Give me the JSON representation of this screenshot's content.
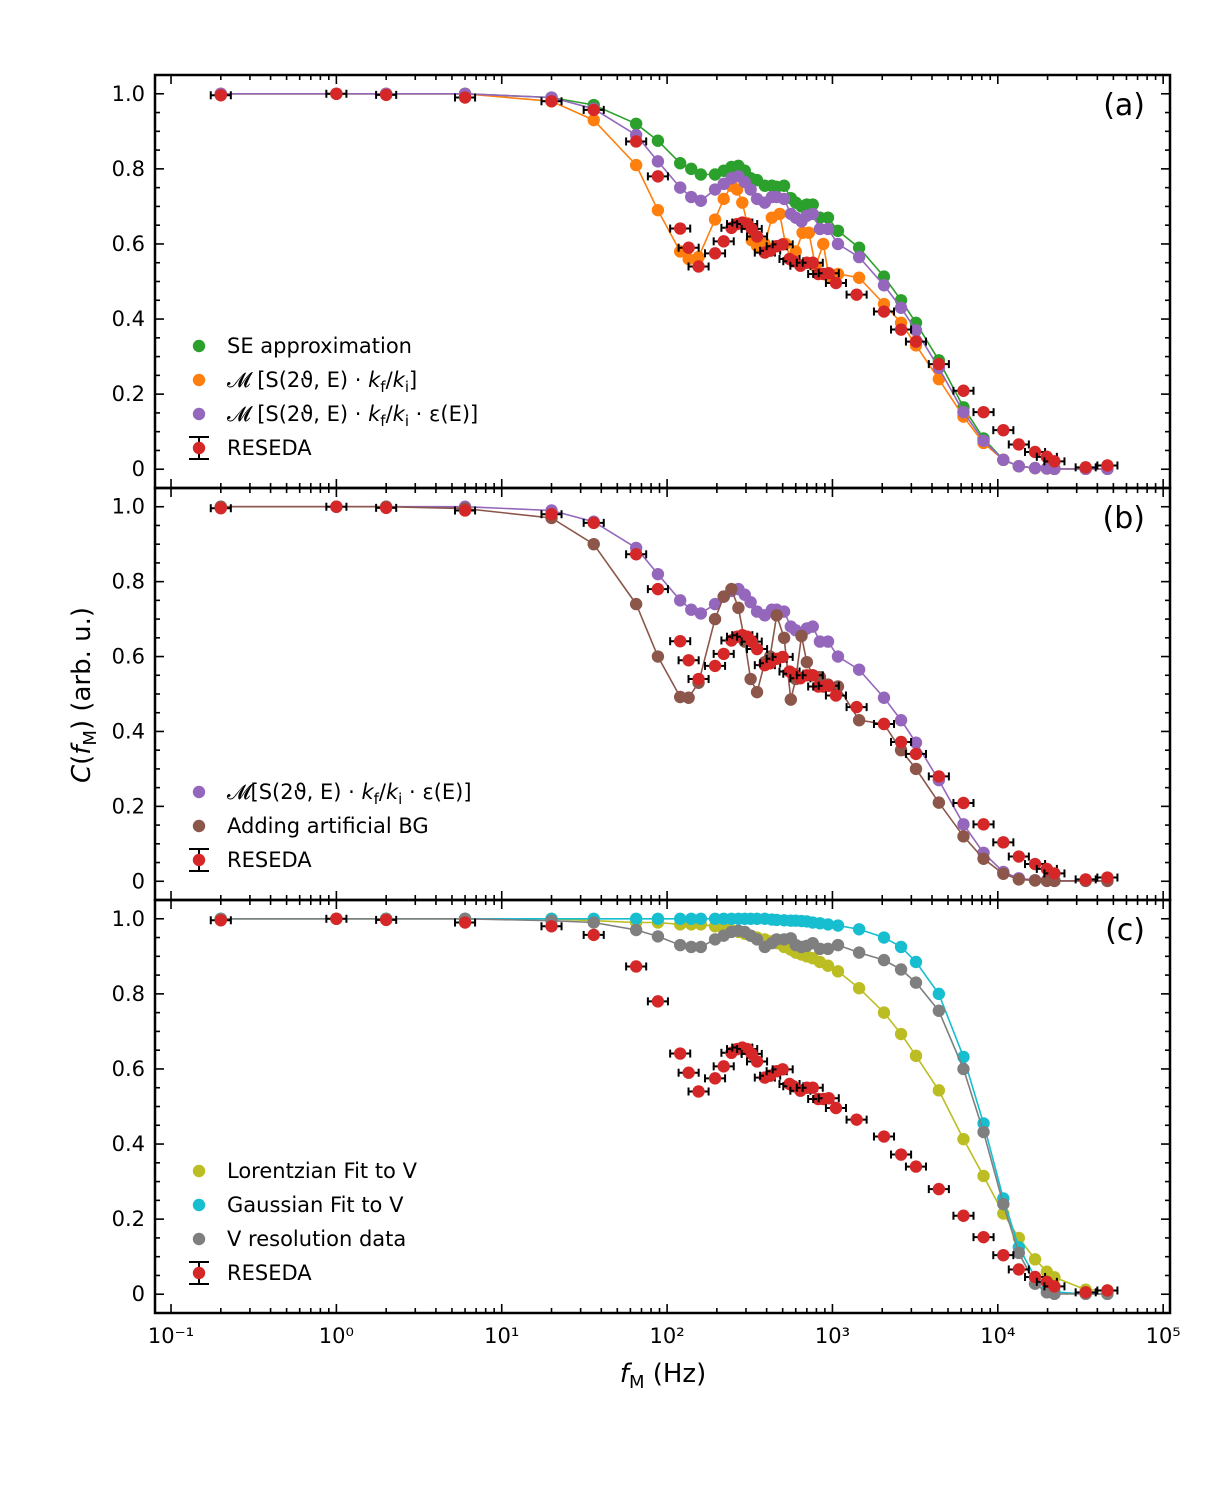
{
  "chart_data": {
    "type": "scatter",
    "ylabel": "C(fM) (arb. u.)",
    "xlabel": "fM (Hz)",
    "xscale": "log",
    "xlim": [
      0.08,
      110000
    ],
    "ylim": [
      -0.05,
      1.05
    ],
    "x_ticks": [
      "10⁻¹",
      "10⁰",
      "10¹",
      "10²",
      "10³",
      "10⁴",
      "10⁵"
    ],
    "y_ticks": [
      "0",
      "0.2",
      "0.4",
      "0.6",
      "0.8",
      "1.0"
    ],
    "colors": {
      "se": "#2ca02c",
      "orange": "#ff7f0e",
      "purple": "#9467bd",
      "reseda": "#d62728",
      "brown": "#8c564b",
      "olive": "#bcbd22",
      "cyan": "#17becf",
      "gray": "#7f7f7f",
      "axis": "#000000"
    },
    "reseda": {
      "x": [
        0.2,
        1,
        2,
        6,
        20,
        36,
        65,
        88,
        120,
        135,
        155,
        195,
        220,
        245,
        265,
        285,
        305,
        325,
        350,
        390,
        420,
        460,
        500,
        550,
        580,
        640,
        700,
        760,
        820,
        880,
        950,
        1050,
        1400,
        2050,
        2600,
        3200,
        4400,
        6200,
        8200,
        10800,
        13400,
        16800,
        19800,
        22000,
        34000,
        46000
      ],
      "y": [
        0.996,
        1.0,
        0.997,
        0.99,
        0.98,
        0.957,
        0.873,
        0.78,
        0.641,
        0.59,
        0.54,
        0.575,
        0.607,
        0.643,
        0.653,
        0.657,
        0.653,
        0.64,
        0.62,
        0.577,
        0.582,
        0.594,
        0.599,
        0.56,
        0.554,
        0.542,
        0.55,
        0.55,
        0.52,
        0.52,
        0.522,
        0.496,
        0.465,
        0.42,
        0.372,
        0.34,
        0.28,
        0.209,
        0.152,
        0.104,
        0.066,
        0.046,
        0.033,
        0.021,
        0.005,
        0.01
      ]
    },
    "panels": [
      {
        "label": "(a)",
        "legend": [
          "SE approximation",
          "𝓜 [S(2ϑ, E) · kf/ki]",
          "𝓜 [S(2ϑ, E) · kf/ki · ε(E)]",
          "RESEDA"
        ],
        "series": [
          {
            "name": "SE approximation",
            "color": "se",
            "x": [
              0.2,
              1,
              2,
              6,
              20,
              36,
              65,
              88,
              120,
              140,
              160,
              195,
              220,
              245,
              270,
              295,
              320,
              350,
              390,
              430,
              460,
              510,
              560,
              600,
              650,
              700,
              760,
              840,
              940,
              1080,
              1450,
              2050,
              2600,
              3200,
              4400,
              6200,
              8200,
              10800,
              13400,
              16800,
              19800,
              22000,
              34000,
              46000
            ],
            "y": [
              1.0,
              1.0,
              1.0,
              1.0,
              0.99,
              0.97,
              0.92,
              0.875,
              0.815,
              0.8,
              0.785,
              0.785,
              0.795,
              0.805,
              0.808,
              0.795,
              0.775,
              0.77,
              0.755,
              0.755,
              0.752,
              0.755,
              0.722,
              0.71,
              0.7,
              0.705,
              0.705,
              0.67,
              0.67,
              0.635,
              0.59,
              0.513,
              0.45,
              0.39,
              0.29,
              0.165,
              0.082,
              0.025,
              0.008,
              0.003,
              0.002,
              0.001,
              0.001,
              0.001
            ]
          },
          {
            "name": "M [S kf/ki]",
            "color": "orange",
            "x": [
              0.2,
              1,
              2,
              6,
              20,
              36,
              65,
              88,
              120,
              135,
              155,
              195,
              220,
              245,
              265,
              285,
              305,
              325,
              350,
              390,
              430,
              480,
              520,
              560,
              600,
              660,
              720,
              790,
              880,
              950,
              1080,
              1450,
              2050,
              2600,
              3200,
              4400,
              6200,
              8200,
              10800,
              13400,
              16800,
              19800,
              22000,
              34000,
              46000
            ],
            "y": [
              1.0,
              1.0,
              1.0,
              1.0,
              0.98,
              0.93,
              0.81,
              0.69,
              0.58,
              0.56,
              0.565,
              0.665,
              0.72,
              0.755,
              0.745,
              0.71,
              0.655,
              0.61,
              0.595,
              0.6,
              0.67,
              0.68,
              0.6,
              0.56,
              0.58,
              0.63,
              0.63,
              0.54,
              0.6,
              0.515,
              0.52,
              0.51,
              0.44,
              0.39,
              0.33,
              0.24,
              0.14,
              0.07,
              0.025,
              0.008,
              0.003,
              0.002,
              0.001,
              0.001,
              0.001
            ]
          },
          {
            "name": "M [S kf/ki eps]",
            "color": "purple",
            "x": [
              0.2,
              1,
              2,
              6,
              20,
              36,
              65,
              88,
              120,
              140,
              160,
              195,
              220,
              245,
              270,
              295,
              320,
              350,
              390,
              430,
              460,
              510,
              560,
              600,
              650,
              700,
              760,
              840,
              940,
              1080,
              1450,
              2050,
              2600,
              3200,
              4400,
              6200,
              8200,
              10800,
              13400,
              16800,
              19800,
              22000,
              34000,
              46000
            ],
            "y": [
              1.0,
              1.0,
              1.0,
              1.0,
              0.99,
              0.96,
              0.89,
              0.82,
              0.75,
              0.725,
              0.715,
              0.745,
              0.76,
              0.775,
              0.78,
              0.765,
              0.745,
              0.72,
              0.71,
              0.725,
              0.725,
              0.72,
              0.68,
              0.67,
              0.66,
              0.675,
              0.68,
              0.64,
              0.64,
              0.6,
              0.565,
              0.49,
              0.43,
              0.37,
              0.27,
              0.152,
              0.076,
              0.025,
              0.008,
              0.003,
              0.002,
              0.001,
              0.001,
              0.001
            ]
          }
        ]
      },
      {
        "label": "(b)",
        "legend": [
          "𝓜[S(2ϑ, E) · kf/ki · ε(E)]",
          "Adding artificial BG",
          "RESEDA"
        ],
        "series": [
          {
            "name": "M [S kf/ki eps]",
            "color": "purple",
            "x": [
              0.2,
              1,
              2,
              6,
              20,
              36,
              65,
              88,
              120,
              140,
              160,
              195,
              220,
              245,
              270,
              295,
              320,
              350,
              390,
              430,
              460,
              510,
              560,
              600,
              650,
              700,
              760,
              840,
              940,
              1080,
              1450,
              2050,
              2600,
              3200,
              4400,
              6200,
              8200,
              10800,
              13400,
              16800,
              19800,
              22000,
              34000,
              46000
            ],
            "y": [
              1.0,
              1.0,
              1.0,
              1.0,
              0.99,
              0.96,
              0.89,
              0.82,
              0.75,
              0.725,
              0.715,
              0.74,
              0.76,
              0.775,
              0.78,
              0.765,
              0.745,
              0.72,
              0.71,
              0.725,
              0.725,
              0.72,
              0.68,
              0.67,
              0.66,
              0.675,
              0.68,
              0.64,
              0.64,
              0.6,
              0.565,
              0.49,
              0.43,
              0.37,
              0.27,
              0.152,
              0.076,
              0.025,
              0.008,
              0.003,
              0.002,
              0.001,
              0.001,
              0.001
            ]
          },
          {
            "name": "Adding artificial BG",
            "color": "brown",
            "x": [
              0.2,
              1,
              2,
              6,
              20,
              36,
              65,
              88,
              120,
              135,
              155,
              195,
              220,
              245,
              270,
              295,
              320,
              350,
              390,
              420,
              460,
              510,
              560,
              600,
              650,
              700,
              760,
              840,
              940,
              1080,
              1450,
              2050,
              2600,
              3200,
              4400,
              6200,
              8200,
              10800,
              13400,
              16800,
              19800,
              22000,
              34000,
              46000
            ],
            "y": [
              1.0,
              1.0,
              1.0,
              0.995,
              0.97,
              0.9,
              0.74,
              0.6,
              0.492,
              0.49,
              0.53,
              0.7,
              0.76,
              0.78,
              0.73,
              0.64,
              0.54,
              0.505,
              0.585,
              0.6,
              0.71,
              0.65,
              0.485,
              0.54,
              0.655,
              0.585,
              0.55,
              0.545,
              0.525,
              0.52,
              0.43,
              0.42,
              0.35,
              0.3,
              0.21,
              0.12,
              0.06,
              0.02,
              0.005,
              0.002,
              0.001,
              0.001,
              0.001,
              0.001
            ]
          }
        ]
      },
      {
        "label": "(c)",
        "legend": [
          "Lorentzian Fit to V",
          "Gaussian Fit to V",
          "V resolution data",
          "RESEDA"
        ],
        "series": [
          {
            "name": "Lorentzian Fit to V",
            "color": "olive",
            "x": [
              0.2,
              1,
              2,
              6,
              20,
              36,
              65,
              88,
              120,
              140,
              160,
              195,
              220,
              245,
              270,
              295,
              320,
              350,
              390,
              430,
              460,
              510,
              560,
              600,
              650,
              700,
              760,
              840,
              940,
              1080,
              1450,
              2050,
              2600,
              3200,
              4400,
              6200,
              8200,
              10800,
              13400,
              16800,
              19800,
              22000,
              34000,
              46000
            ],
            "y": [
              1.0,
              1.0,
              1.0,
              1.0,
              1.0,
              0.995,
              0.99,
              0.99,
              0.985,
              0.985,
              0.985,
              0.98,
              0.975,
              0.97,
              0.965,
              0.96,
              0.955,
              0.95,
              0.945,
              0.94,
              0.935,
              0.925,
              0.918,
              0.91,
              0.905,
              0.9,
              0.895,
              0.885,
              0.875,
              0.86,
              0.815,
              0.75,
              0.693,
              0.635,
              0.543,
              0.413,
              0.315,
              0.215,
              0.15,
              0.093,
              0.06,
              0.045,
              0.012,
              0.01
            ]
          },
          {
            "name": "Gaussian Fit to V",
            "color": "cyan",
            "x": [
              0.2,
              1,
              2,
              6,
              20,
              36,
              65,
              88,
              120,
              140,
              160,
              195,
              220,
              245,
              270,
              295,
              320,
              350,
              390,
              430,
              460,
              510,
              560,
              600,
              650,
              700,
              760,
              840,
              940,
              1080,
              1450,
              2050,
              2600,
              3200,
              4400,
              6200,
              8200,
              10800,
              13400,
              16800,
              19800,
              22000,
              34000,
              46000
            ],
            "y": [
              1.0,
              1.0,
              1.0,
              1.0,
              1.0,
              1.0,
              1.0,
              1.0,
              1.0,
              1.0,
              1.0,
              1.0,
              1.0,
              1.0,
              1.0,
              1.0,
              1.0,
              1.0,
              1.0,
              0.998,
              0.997,
              0.996,
              0.995,
              0.995,
              0.994,
              0.993,
              0.99,
              0.988,
              0.985,
              0.982,
              0.972,
              0.95,
              0.925,
              0.885,
              0.8,
              0.632,
              0.455,
              0.255,
              0.125,
              0.045,
              0.015,
              0.006,
              0.001,
              0.001
            ]
          },
          {
            "name": "V resolution data",
            "color": "gray",
            "x": [
              0.2,
              1,
              2,
              6,
              20,
              36,
              65,
              88,
              120,
              140,
              160,
              195,
              220,
              245,
              270,
              295,
              320,
              350,
              390,
              430,
              460,
              510,
              560,
              600,
              650,
              700,
              760,
              840,
              940,
              1080,
              1450,
              2050,
              2600,
              3200,
              4400,
              6200,
              8200,
              10800,
              13400,
              16800,
              19800,
              22000,
              34000,
              46000
            ],
            "y": [
              1.0,
              1.0,
              1.0,
              1.0,
              0.995,
              0.99,
              0.97,
              0.953,
              0.93,
              0.925,
              0.925,
              0.945,
              0.955,
              0.965,
              0.968,
              0.965,
              0.955,
              0.945,
              0.925,
              0.935,
              0.945,
              0.945,
              0.948,
              0.93,
              0.925,
              0.928,
              0.935,
              0.92,
              0.92,
              0.93,
              0.91,
              0.89,
              0.865,
              0.83,
              0.755,
              0.6,
              0.432,
              0.24,
              0.11,
              0.028,
              0.005,
              0.001,
              0.001,
              0.001
            ]
          }
        ]
      }
    ]
  }
}
